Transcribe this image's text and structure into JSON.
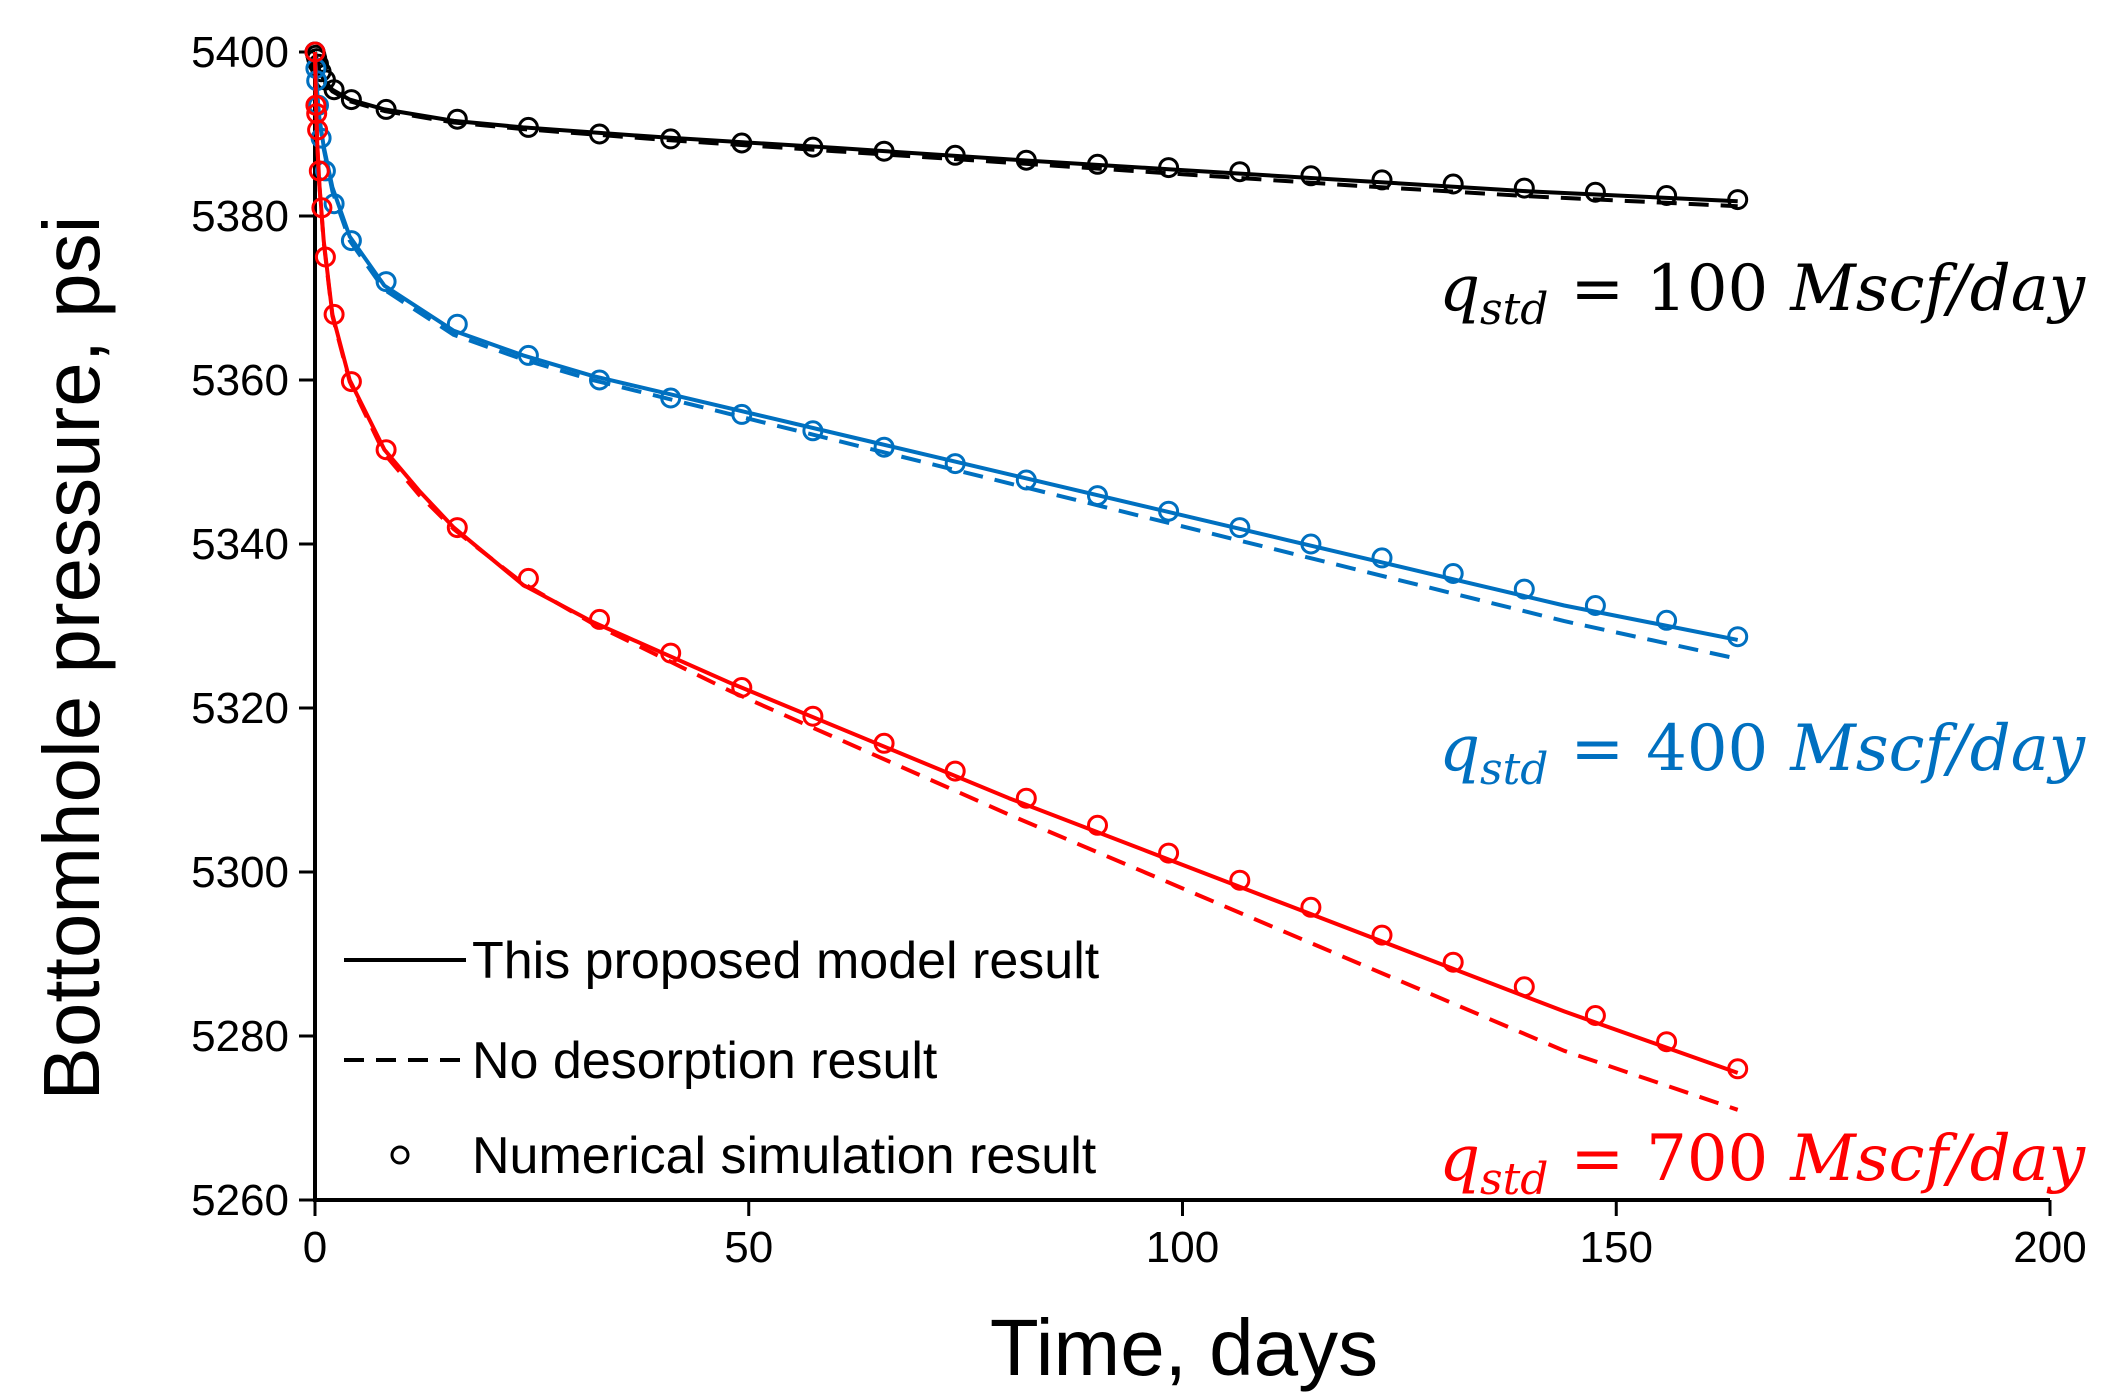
{
  "chart_data": {
    "type": "line",
    "title": "",
    "xlabel": "Time, days",
    "ylabel": "Bottomhole pressure, psi",
    "xlim": [
      0,
      200
    ],
    "ylim": [
      5260,
      5400
    ],
    "xticks": [
      0,
      50,
      100,
      150,
      200
    ],
    "yticks": [
      5260,
      5280,
      5300,
      5320,
      5340,
      5360,
      5380,
      5400
    ],
    "grid": false,
    "legend": {
      "placement": "bottom-left",
      "entries": [
        {
          "name": "This proposed model result",
          "style": "solid"
        },
        {
          "name": "No desorption result",
          "style": "dashed"
        },
        {
          "name": "Numerical simulation result",
          "style": "marker"
        }
      ]
    },
    "series": [
      {
        "rate_value": "100",
        "color": "#000000",
        "model": {
          "x": [
            0,
            0.25,
            0.5,
            1,
            2,
            4,
            8,
            16,
            24,
            40,
            60,
            80,
            100,
            120,
            140,
            164
          ],
          "y": [
            5400,
            5398.8,
            5397.8,
            5396.6,
            5395.4,
            5394.2,
            5393.0,
            5391.6,
            5390.8,
            5389.6,
            5388.3,
            5386.9,
            5385.6,
            5384.3,
            5383.0,
            5381.8
          ]
        },
        "no_desorption": {
          "x": [
            0,
            0.25,
            0.5,
            1,
            2,
            4,
            8,
            16,
            24,
            40,
            60,
            80,
            100,
            120,
            140,
            164
          ],
          "y": [
            5400,
            5398.7,
            5397.6,
            5396.4,
            5395.2,
            5394.0,
            5392.8,
            5391.4,
            5390.6,
            5389.3,
            5387.9,
            5386.5,
            5385.1,
            5383.7,
            5382.4,
            5381.2
          ]
        },
        "simulation": {
          "x": [
            0,
            0.1,
            0.2,
            0.4,
            0.7,
            1.2,
            2.2,
            4.2,
            8.2,
            16.4,
            24.6,
            32.8,
            41,
            49.2,
            57.4,
            65.6,
            73.8,
            82,
            90.2,
            98.4,
            106.6,
            114.8,
            123,
            131.2,
            139.4,
            147.6,
            155.8,
            164
          ],
          "y": [
            5400,
            5399.6,
            5399.2,
            5398.5,
            5397.6,
            5396.6,
            5395.4,
            5394.2,
            5393.0,
            5391.8,
            5390.8,
            5390.0,
            5389.4,
            5388.9,
            5388.4,
            5387.9,
            5387.4,
            5386.8,
            5386.3,
            5385.9,
            5385.4,
            5384.9,
            5384.4,
            5383.9,
            5383.4,
            5382.9,
            5382.5,
            5382.0
          ]
        }
      },
      {
        "rate_value": "400",
        "color": "#0070C0",
        "model": {
          "x": [
            0,
            0.1,
            0.25,
            0.5,
            1,
            2,
            4,
            8,
            16,
            24,
            32,
            48,
            64,
            80,
            96,
            112,
            128,
            144,
            164
          ],
          "y": [
            5400,
            5397.5,
            5395.0,
            5392.0,
            5388.5,
            5383.5,
            5377.5,
            5371.5,
            5366.0,
            5363.0,
            5360.5,
            5356.5,
            5352.5,
            5348.5,
            5344.5,
            5340.5,
            5336.5,
            5332.5,
            5328.3
          ]
        },
        "no_desorption": {
          "x": [
            0,
            0.1,
            0.25,
            0.5,
            1,
            2,
            4,
            8,
            16,
            24,
            32,
            48,
            64,
            80,
            96,
            112,
            128,
            144,
            164
          ],
          "y": [
            5400,
            5397.4,
            5394.8,
            5391.8,
            5388.2,
            5383.0,
            5377.0,
            5371.0,
            5365.5,
            5362.5,
            5360.0,
            5355.8,
            5351.6,
            5347.4,
            5343.2,
            5339.0,
            5334.8,
            5330.6,
            5326.0
          ]
        },
        "simulation": {
          "x": [
            0,
            0.1,
            0.2,
            0.4,
            0.7,
            1.2,
            2.2,
            4.2,
            8.2,
            16.4,
            24.6,
            32.8,
            41,
            49.2,
            57.4,
            65.6,
            73.8,
            82,
            90.2,
            98.4,
            106.6,
            114.8,
            123,
            131.2,
            139.4,
            147.6,
            155.8,
            164
          ],
          "y": [
            5400,
            5398.0,
            5396.5,
            5393.5,
            5389.5,
            5385.5,
            5381.5,
            5377.0,
            5372.0,
            5366.8,
            5363.0,
            5360.0,
            5357.8,
            5355.8,
            5353.8,
            5351.8,
            5349.8,
            5347.8,
            5345.9,
            5344.0,
            5342.0,
            5340.0,
            5338.3,
            5336.4,
            5334.5,
            5332.5,
            5330.7,
            5328.7
          ]
        }
      },
      {
        "rate_value": "700",
        "color": "#FF0000",
        "model": {
          "x": [
            0,
            0.1,
            0.25,
            0.5,
            1,
            2,
            4,
            8,
            12,
            16,
            24,
            32,
            48,
            64,
            80,
            96,
            112,
            128,
            144,
            164
          ],
          "y": [
            5400,
            5394.0,
            5389.0,
            5384.0,
            5377.0,
            5368.0,
            5360.0,
            5351.5,
            5346.5,
            5342.0,
            5335.0,
            5330.5,
            5323.0,
            5316.0,
            5309.0,
            5302.5,
            5296.0,
            5289.5,
            5283.0,
            5275.5
          ]
        },
        "no_desorption": {
          "x": [
            0,
            0.1,
            0.25,
            0.5,
            1,
            2,
            4,
            8,
            12,
            16,
            24,
            32,
            48,
            64,
            80,
            96,
            112,
            128,
            144,
            164
          ],
          "y": [
            5400,
            5393.8,
            5388.8,
            5383.8,
            5376.8,
            5367.8,
            5359.8,
            5351.0,
            5346.0,
            5341.8,
            5335.2,
            5330.3,
            5322.0,
            5314.5,
            5307.0,
            5299.8,
            5292.6,
            5285.4,
            5278.2,
            5271.0
          ]
        },
        "simulation": {
          "x": [
            0,
            0.1,
            0.2,
            0.3,
            0.5,
            0.8,
            1.2,
            2.2,
            4.2,
            8.2,
            16.4,
            24.6,
            32.8,
            41,
            49.2,
            57.4,
            65.6,
            73.8,
            82,
            90.2,
            98.4,
            106.6,
            114.8,
            123,
            131.2,
            139.4,
            147.6,
            155.8,
            164
          ],
          "y": [
            5400,
            5393.5,
            5392.5,
            5390.5,
            5385.5,
            5381.0,
            5375.0,
            5368.0,
            5359.8,
            5351.5,
            5342.0,
            5335.8,
            5330.8,
            5326.7,
            5322.5,
            5319.0,
            5315.7,
            5312.3,
            5309.0,
            5305.7,
            5302.3,
            5299.0,
            5295.7,
            5292.3,
            5289.0,
            5286.0,
            5282.5,
            5279.3,
            5276.0
          ]
        }
      }
    ],
    "annotations": [
      {
        "q": "q",
        "sub": "std",
        "eq": "=",
        "value": "100",
        "unit": "Mscf/day",
        "color": "#000000"
      },
      {
        "q": "q",
        "sub": "std",
        "eq": "=",
        "value": "400",
        "unit": "Mscf/day",
        "color": "#0070C0"
      },
      {
        "q": "q",
        "sub": "std",
        "eq": "=",
        "value": "700",
        "unit": "Mscf/day",
        "color": "#FF0000"
      }
    ]
  }
}
